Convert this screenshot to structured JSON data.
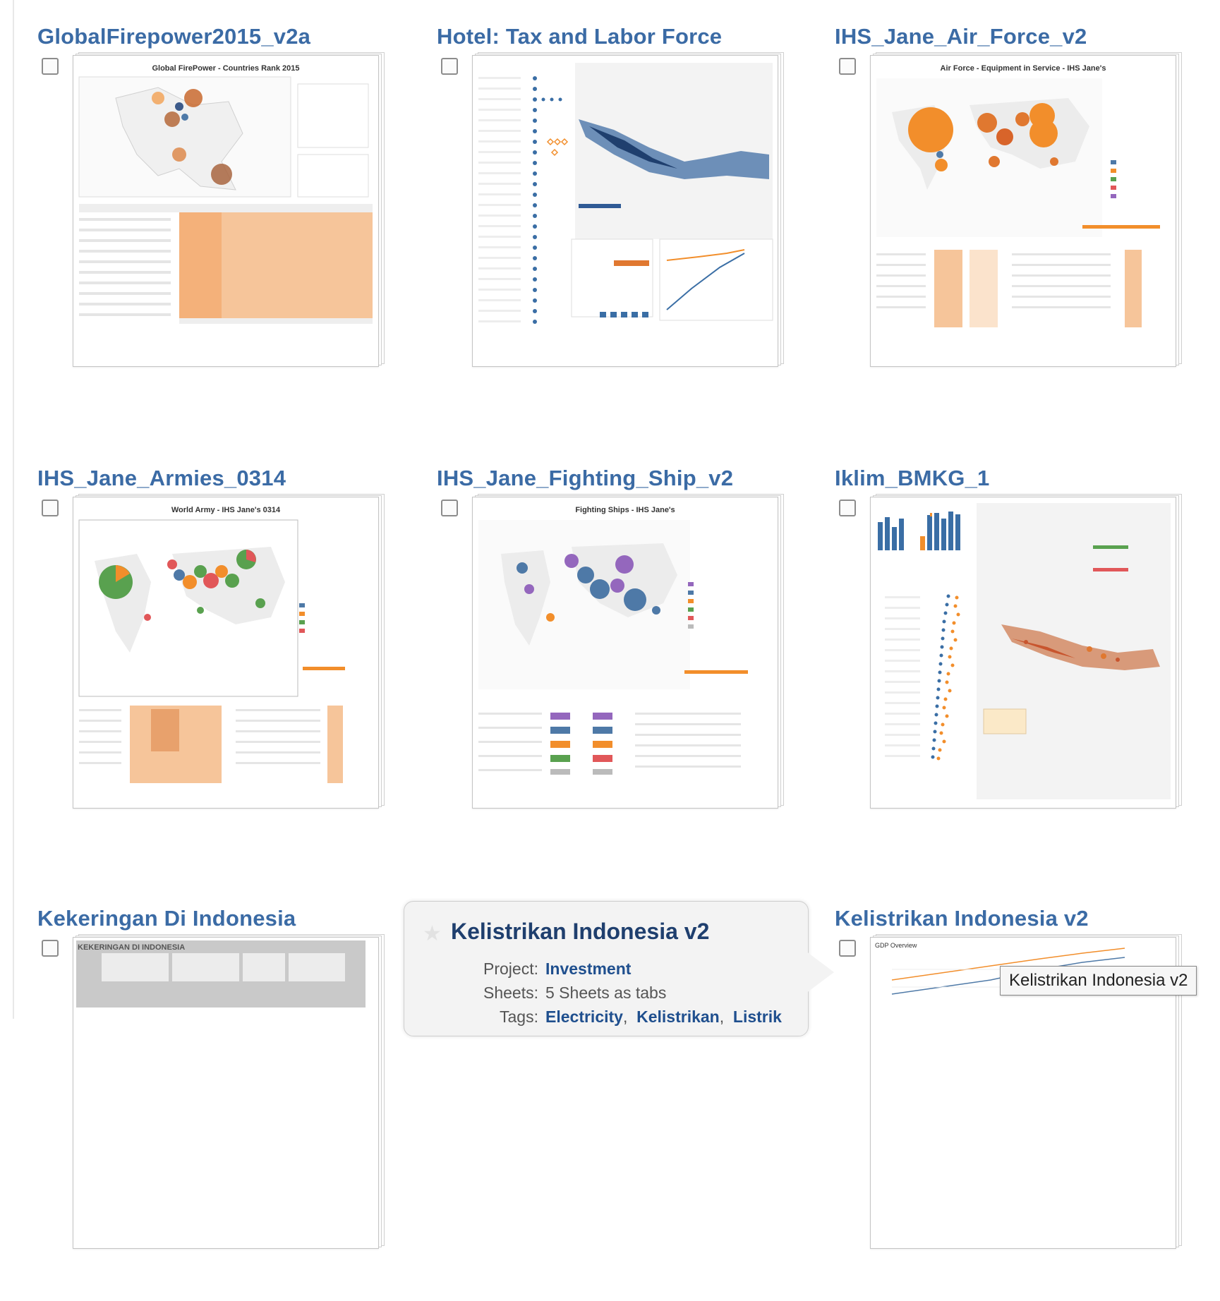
{
  "workbooks": [
    {
      "title": "GlobalFirepower2015_v2a",
      "thumb_caption": "Global FirePower - Countries Rank 2015",
      "checked": false
    },
    {
      "title": "Hotel: Tax and Labor Force",
      "thumb_caption": "",
      "checked": false
    },
    {
      "title": "IHS_Jane_Air_Force_v2",
      "thumb_caption": "Air Force - Equipment in Service - IHS Jane's",
      "checked": false
    },
    {
      "title": "IHS_Jane_Armies_0314",
      "thumb_caption": "World Army - IHS Jane's 0314",
      "checked": false
    },
    {
      "title": "IHS_Jane_Fighting_Ship_v2",
      "thumb_caption": "Fighting Ships - IHS Jane's",
      "checked": false
    },
    {
      "title": "Iklim_BMKG_1",
      "thumb_caption": "",
      "checked": false
    },
    {
      "title": "Kekeringan Di Indonesia",
      "thumb_caption": "KEKERINGAN DI INDONESIA",
      "checked": false
    },
    {
      "title": "Kelistrikan Indonesia v2",
      "thumb_caption": "GDP Overview",
      "checked": false
    }
  ],
  "popup": {
    "title": "Kelistrikan Indonesia v2",
    "project_label": "Project:",
    "project_value": "Investment",
    "sheets_label": "Sheets:",
    "sheets_value": "5 Sheets as tabs",
    "tags_label": "Tags:",
    "tags": [
      "Electricity",
      "Kelistrikan",
      "Listrik"
    ],
    "favorite_icon": "star-icon"
  },
  "tooltip": "Kelistrikan Indonesia v2",
  "colors": {
    "title_link": "#3b6ba5",
    "popup_title": "#1f3f6e",
    "orange": "#f28e2b",
    "blue": "#4e79a7",
    "green": "#59a14f",
    "purple": "#9467bd",
    "red": "#e15759"
  }
}
